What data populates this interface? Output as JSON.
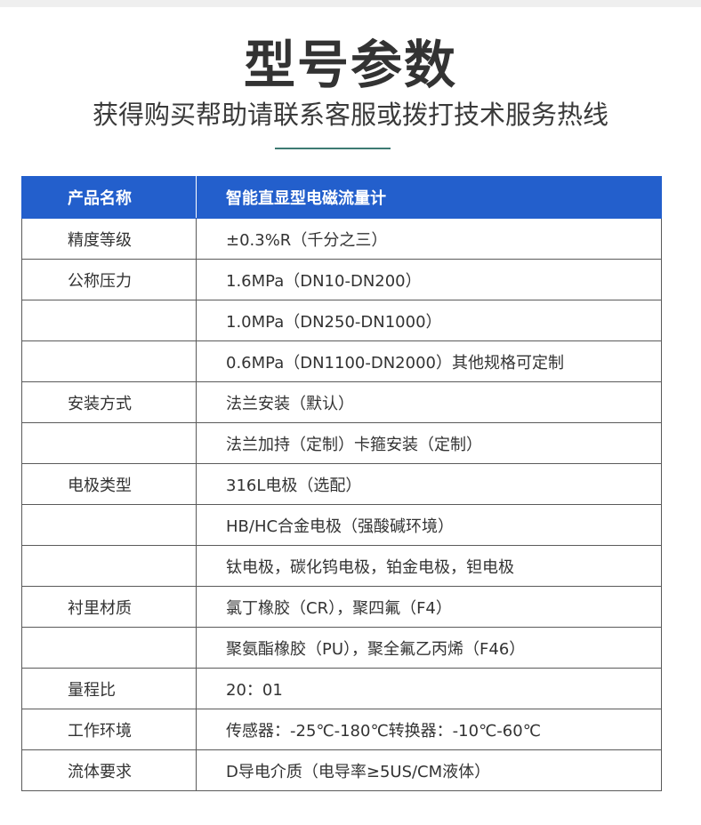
{
  "title": "型号参数",
  "subtitle": "获得购买帮助请联系客服或拨打技术服务热线",
  "colors": {
    "header_bg": "#235fcc",
    "rule": "#3d7a72"
  },
  "table": {
    "header": {
      "key": "产品名称",
      "value": "智能直显型电磁流量计"
    },
    "rows": [
      {
        "key": "精度等级",
        "value": "±0.3%R（千分之三）"
      },
      {
        "key": "公称压力",
        "value": "1.6MPa（DN10-DN200）"
      },
      {
        "key": "",
        "value": "1.0MPa（DN250-DN1000）"
      },
      {
        "key": "",
        "value": "0.6MPa（DN1100-DN2000）其他规格可定制"
      },
      {
        "key": "安装方式",
        "value": "法兰安装（默认）"
      },
      {
        "key": "",
        "value": "法兰加持（定制）卡箍安装（定制）"
      },
      {
        "key": "电极类型",
        "value": "316L电极（选配）"
      },
      {
        "key": "",
        "value": "HB/HC合金电极（强酸碱环境）"
      },
      {
        "key": "",
        "value": "钛电极，碳化钨电极，铂金电极，钽电极"
      },
      {
        "key": "衬里材质",
        "value": "氯丁橡胶（CR），聚四氟（F4）"
      },
      {
        "key": "",
        "value": "聚氨酯橡胶（PU），聚全氟乙丙烯（F46）"
      },
      {
        "key": "量程比",
        "value": "20：01"
      },
      {
        "key": "工作环境",
        "value": "传感器：-25℃-180℃转换器：-10℃-60℃"
      },
      {
        "key": "流体要求",
        "value": "D导电介质（电导率≥5US/CM液体）"
      }
    ]
  }
}
